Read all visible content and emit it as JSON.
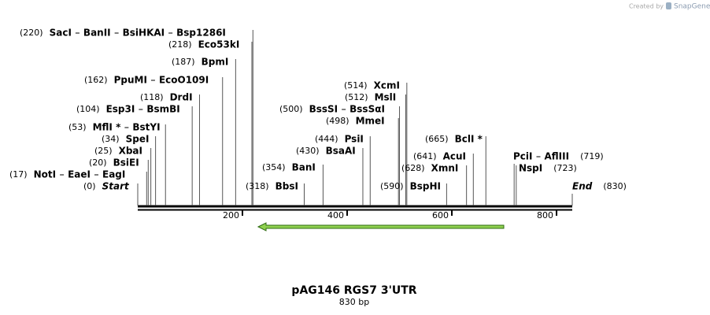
{
  "header": {
    "credit": "Created by",
    "brand": "SnapGene"
  },
  "map": {
    "title": "pAG146 RGS7 3'UTR",
    "sequence_length": {
      "value": 830,
      "label": "830 bp"
    },
    "ticks": [
      200,
      400,
      600,
      800
    ],
    "sites": [
      {
        "position": {
          "value": 0,
          "label": "(0)"
        },
        "names": [
          "Start"
        ]
      },
      {
        "position": {
          "value": 17,
          "label": "(17)"
        },
        "names": [
          "NotI",
          "EaeI",
          "EagI"
        ]
      },
      {
        "position": {
          "value": 20,
          "label": "(20)"
        },
        "names": [
          "BsiEI"
        ]
      },
      {
        "position": {
          "value": 25,
          "label": "(25)"
        },
        "names": [
          "XbaI"
        ]
      },
      {
        "position": {
          "value": 34,
          "label": "(34)"
        },
        "names": [
          "SpeI"
        ]
      },
      {
        "position": {
          "value": 53,
          "label": "(53)"
        },
        "names": [
          "MflI *",
          "BstYI"
        ]
      },
      {
        "position": {
          "value": 104,
          "label": "(104)"
        },
        "names": [
          "Esp3I",
          "BsmBI"
        ]
      },
      {
        "position": {
          "value": 118,
          "label": "(118)"
        },
        "names": [
          "DrdI"
        ]
      },
      {
        "position": {
          "value": 162,
          "label": "(162)"
        },
        "names": [
          "PpuMI",
          "EcoO109I"
        ]
      },
      {
        "position": {
          "value": 187,
          "label": "(187)"
        },
        "names": [
          "BpmI"
        ]
      },
      {
        "position": {
          "value": 218,
          "label": "(218)"
        },
        "names": [
          "Eco53kI"
        ]
      },
      {
        "position": {
          "value": 220,
          "label": "(220)"
        },
        "names": [
          "SacI",
          "BanII",
          "BsiHKAI",
          "Bsp1286I"
        ]
      },
      {
        "position": {
          "value": 318,
          "label": "(318)"
        },
        "names": [
          "BbsI"
        ]
      },
      {
        "position": {
          "value": 354,
          "label": "(354)"
        },
        "names": [
          "BanI"
        ]
      },
      {
        "position": {
          "value": 430,
          "label": "(430)"
        },
        "names": [
          "BsaAI"
        ]
      },
      {
        "position": {
          "value": 444,
          "label": "(444)"
        },
        "names": [
          "PsiI"
        ]
      },
      {
        "position": {
          "value": 498,
          "label": "(498)"
        },
        "names": [
          "MmeI"
        ]
      },
      {
        "position": {
          "value": 500,
          "label": "(500)"
        },
        "names": [
          "BssSI",
          "BssSαI"
        ]
      },
      {
        "position": {
          "value": 512,
          "label": "(512)"
        },
        "names": [
          "MslI"
        ]
      },
      {
        "position": {
          "value": 514,
          "label": "(514)"
        },
        "names": [
          "XcmI"
        ]
      },
      {
        "position": {
          "value": 590,
          "label": "(590)"
        },
        "names": [
          "BspHI"
        ]
      },
      {
        "position": {
          "value": 628,
          "label": "(628)"
        },
        "names": [
          "XmnI"
        ]
      },
      {
        "position": {
          "value": 641,
          "label": "(641)"
        },
        "names": [
          "AcuI"
        ]
      },
      {
        "position": {
          "value": 665,
          "label": "(665)"
        },
        "names": [
          "BclI *"
        ]
      },
      {
        "position": {
          "value": 719,
          "label": "(719)"
        },
        "names": [
          "PciI",
          "AflIII"
        ]
      },
      {
        "position": {
          "value": 723,
          "label": "(723)"
        },
        "names": [
          "NspI"
        ]
      },
      {
        "position": {
          "value": 830,
          "label": "(830)"
        },
        "names": [
          "End"
        ]
      }
    ]
  }
}
